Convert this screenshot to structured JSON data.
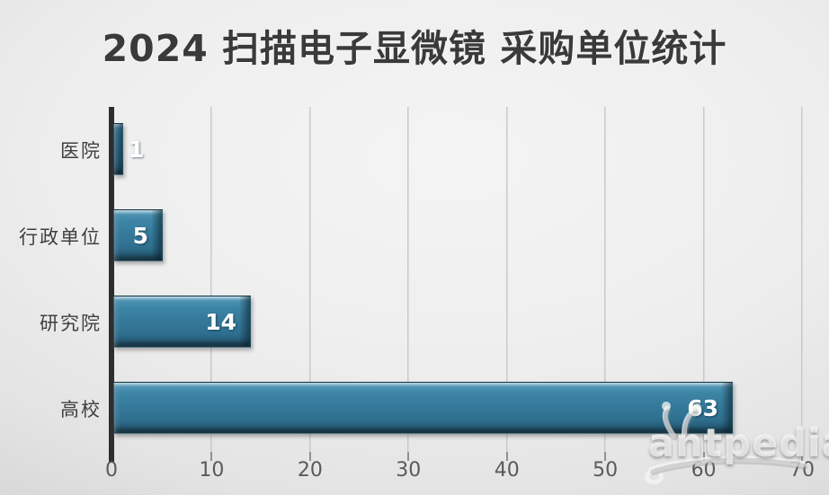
{
  "chart_data": {
    "type": "bar",
    "orientation": "horizontal",
    "title": "2024 扫描电子显微镜 采购单位统计",
    "categories": [
      "医院",
      "行政单位",
      "研究院",
      "高校"
    ],
    "values": [
      1,
      5,
      14,
      63
    ],
    "xlabel": "",
    "ylabel": "",
    "xlim": [
      0,
      70
    ],
    "x_ticks": [
      "0",
      "10",
      "20",
      "30",
      "40",
      "50",
      "60",
      "70"
    ],
    "grid": true,
    "legend": false,
    "bar_color": "#35799a",
    "value_label_color": "#ffffff"
  },
  "watermark": {
    "text": "antpedia"
  },
  "colors": {
    "background_center": "#f2f2f2",
    "background_corner": "#b2b2b2",
    "title_text": "#3a3a3a",
    "category_text": "#3f3f3f",
    "tick_text": "#5a5a5a",
    "axis_line": "#2e2e2e",
    "gridline": "#b5b8ba",
    "bar": "#35799a",
    "value_text": "#ffffff"
  }
}
